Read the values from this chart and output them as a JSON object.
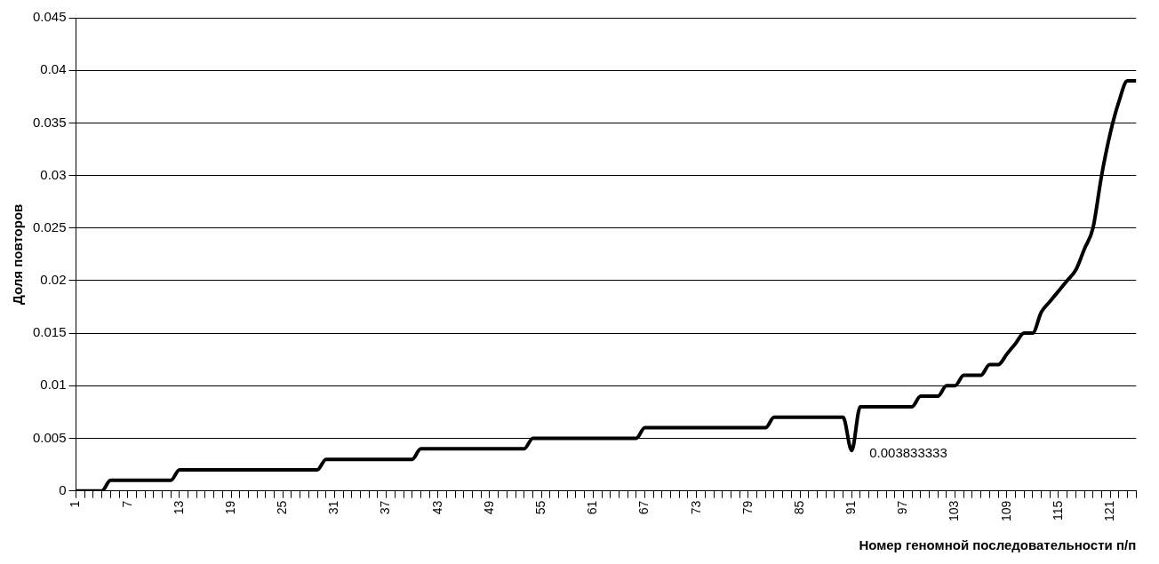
{
  "chart_data": {
    "type": "line",
    "xlabel": "Номер геномной последовательности п/п",
    "ylabel": "Доля повторов",
    "categories": [
      "1",
      null,
      null,
      null,
      null,
      null,
      "7",
      null,
      null,
      null,
      null,
      null,
      "13",
      null,
      null,
      null,
      null,
      null,
      "19",
      null,
      null,
      null,
      null,
      null,
      "25",
      null,
      null,
      null,
      null,
      null,
      "31",
      null,
      null,
      null,
      null,
      null,
      "37",
      null,
      null,
      null,
      null,
      null,
      "43",
      null,
      null,
      null,
      null,
      null,
      "49",
      null,
      null,
      null,
      null,
      null,
      "55",
      null,
      null,
      null,
      null,
      null,
      "61",
      null,
      null,
      null,
      null,
      null,
      "67",
      null,
      null,
      null,
      null,
      null,
      "73",
      null,
      null,
      null,
      null,
      null,
      "79",
      null,
      null,
      null,
      null,
      null,
      "85",
      null,
      null,
      null,
      null,
      null,
      "91",
      null,
      null,
      null,
      null,
      null,
      "97",
      null,
      null,
      null,
      null,
      null,
      "103",
      null,
      null,
      null,
      null,
      null,
      "109",
      null,
      null,
      null,
      null,
      null,
      "115",
      null,
      null,
      null,
      null,
      null,
      "121",
      null,
      null,
      null
    ],
    "series": [
      {
        "color": "#000000",
        "values": [
          0,
          0,
          0,
          0,
          0.001,
          0.001,
          0.001,
          0.001,
          0.001,
          0.001,
          0.001,
          0.001,
          0.002,
          0.002,
          0.002,
          0.002,
          0.002,
          0.002,
          0.002,
          0.002,
          0.002,
          0.002,
          0.002,
          0.002,
          0.002,
          0.002,
          0.002,
          0.002,
          0.002,
          0.003,
          0.003,
          0.003,
          0.003,
          0.003,
          0.003,
          0.003,
          0.003,
          0.003,
          0.003,
          0.003,
          0.004,
          0.004,
          0.004,
          0.004,
          0.004,
          0.004,
          0.004,
          0.004,
          0.004,
          0.004,
          0.004,
          0.004,
          0.004,
          0.005,
          0.005,
          0.005,
          0.005,
          0.005,
          0.005,
          0.005,
          0.005,
          0.005,
          0.005,
          0.005,
          0.005,
          0.005,
          0.006,
          0.006,
          0.006,
          0.006,
          0.006,
          0.006,
          0.006,
          0.006,
          0.006,
          0.006,
          0.006,
          0.006,
          0.006,
          0.006,
          0.006,
          0.007,
          0.007,
          0.007,
          0.007,
          0.007,
          0.007,
          0.007,
          0.007,
          0.007,
          0.003833333,
          0.008,
          0.008,
          0.008,
          0.008,
          0.008,
          0.008,
          0.008,
          0.009,
          0.009,
          0.009,
          0.01,
          0.01,
          0.011,
          0.011,
          0.011,
          0.012,
          0.012,
          0.013,
          0.014,
          0.015,
          0.015,
          0.017,
          0.018,
          0.019,
          0.02,
          0.021,
          0.023,
          0.025,
          0.03,
          0.034,
          0.037,
          0.039,
          0.039
        ]
      }
    ],
    "ylim": [
      0,
      0.045
    ],
    "yticks": [
      0,
      0.005,
      0.01,
      0.015,
      0.02,
      0.025,
      0.03,
      0.035,
      0.04,
      0.045
    ],
    "grid": "y",
    "legend": false,
    "annotations": [
      {
        "text": "0.003833333",
        "x": "91",
        "y": 0.003833333
      }
    ]
  }
}
